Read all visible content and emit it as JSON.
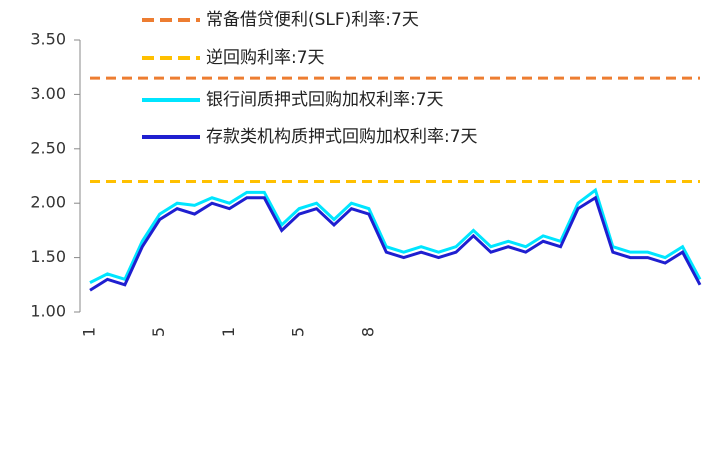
{
  "chart_data": {
    "type": "line",
    "categories": [
      "1",
      null,
      null,
      null,
      "5",
      null,
      null,
      null,
      "1",
      null,
      null,
      null,
      "5",
      null,
      null,
      null,
      "8",
      null,
      null,
      null,
      null,
      null,
      null,
      null,
      null,
      null,
      null,
      null,
      null,
      null,
      null,
      null,
      null,
      null,
      null,
      null
    ],
    "series": [
      {
        "name": "常备借贷便利(SLF)利率:7天",
        "color": "#ed7d31",
        "dash": true,
        "values": [
          3.15,
          3.15,
          3.15,
          3.15,
          3.15,
          3.15,
          3.15,
          3.15,
          3.15,
          3.15,
          3.15,
          3.15,
          3.15,
          3.15,
          3.15,
          3.15,
          3.15,
          3.15,
          3.15,
          3.15,
          3.15,
          3.15,
          3.15,
          3.15,
          3.15,
          3.15,
          3.15,
          3.15,
          3.15,
          3.15,
          3.15,
          3.15,
          3.15,
          3.15,
          3.15,
          3.15
        ]
      },
      {
        "name": "逆回购利率:7天",
        "color": "#ffc000",
        "dash": true,
        "values": [
          2.2,
          2.2,
          2.2,
          2.2,
          2.2,
          2.2,
          2.2,
          2.2,
          2.2,
          2.2,
          2.2,
          2.2,
          2.2,
          2.2,
          2.2,
          2.2,
          2.2,
          2.2,
          2.2,
          2.2,
          2.2,
          2.2,
          2.2,
          2.2,
          2.2,
          2.2,
          2.2,
          2.2,
          2.2,
          2.2,
          2.2,
          2.2,
          2.2,
          2.2,
          2.2,
          2.2
        ]
      },
      {
        "name": "银行间质押式回购加权利率:7天",
        "color": "#00e5ff",
        "dash": false,
        "values": [
          1.27,
          1.35,
          1.3,
          1.65,
          1.9,
          2.0,
          1.98,
          2.05,
          2.0,
          2.1,
          2.1,
          1.8,
          1.95,
          2.0,
          1.85,
          2.0,
          1.95,
          1.6,
          1.55,
          1.6,
          1.55,
          1.6,
          1.75,
          1.6,
          1.65,
          1.6,
          1.7,
          1.65,
          2.0,
          2.12,
          1.6,
          1.55,
          1.55,
          1.5,
          1.6,
          1.3
        ]
      },
      {
        "name": "存款类机构质押式回购加权利率:7天",
        "color": "#1f1fd0",
        "dash": false,
        "values": [
          1.2,
          1.3,
          1.25,
          1.6,
          1.85,
          1.95,
          1.9,
          2.0,
          1.95,
          2.05,
          2.05,
          1.75,
          1.9,
          1.95,
          1.8,
          1.95,
          1.9,
          1.55,
          1.5,
          1.55,
          1.5,
          1.55,
          1.7,
          1.55,
          1.6,
          1.55,
          1.65,
          1.6,
          1.95,
          2.05,
          1.55,
          1.5,
          1.5,
          1.45,
          1.55,
          1.25
        ]
      }
    ],
    "ylim": [
      1.0,
      3.5
    ],
    "yticks": [
      {
        "value": 1.0,
        "label": "1.00"
      },
      {
        "value": 1.5,
        "label": "1.50"
      },
      {
        "value": 2.0,
        "label": "2.00"
      },
      {
        "value": 2.5,
        "label": "2.50"
      },
      {
        "value": 3.0,
        "label": "3.00"
      },
      {
        "value": 3.5,
        "label": "3.50"
      }
    ]
  }
}
